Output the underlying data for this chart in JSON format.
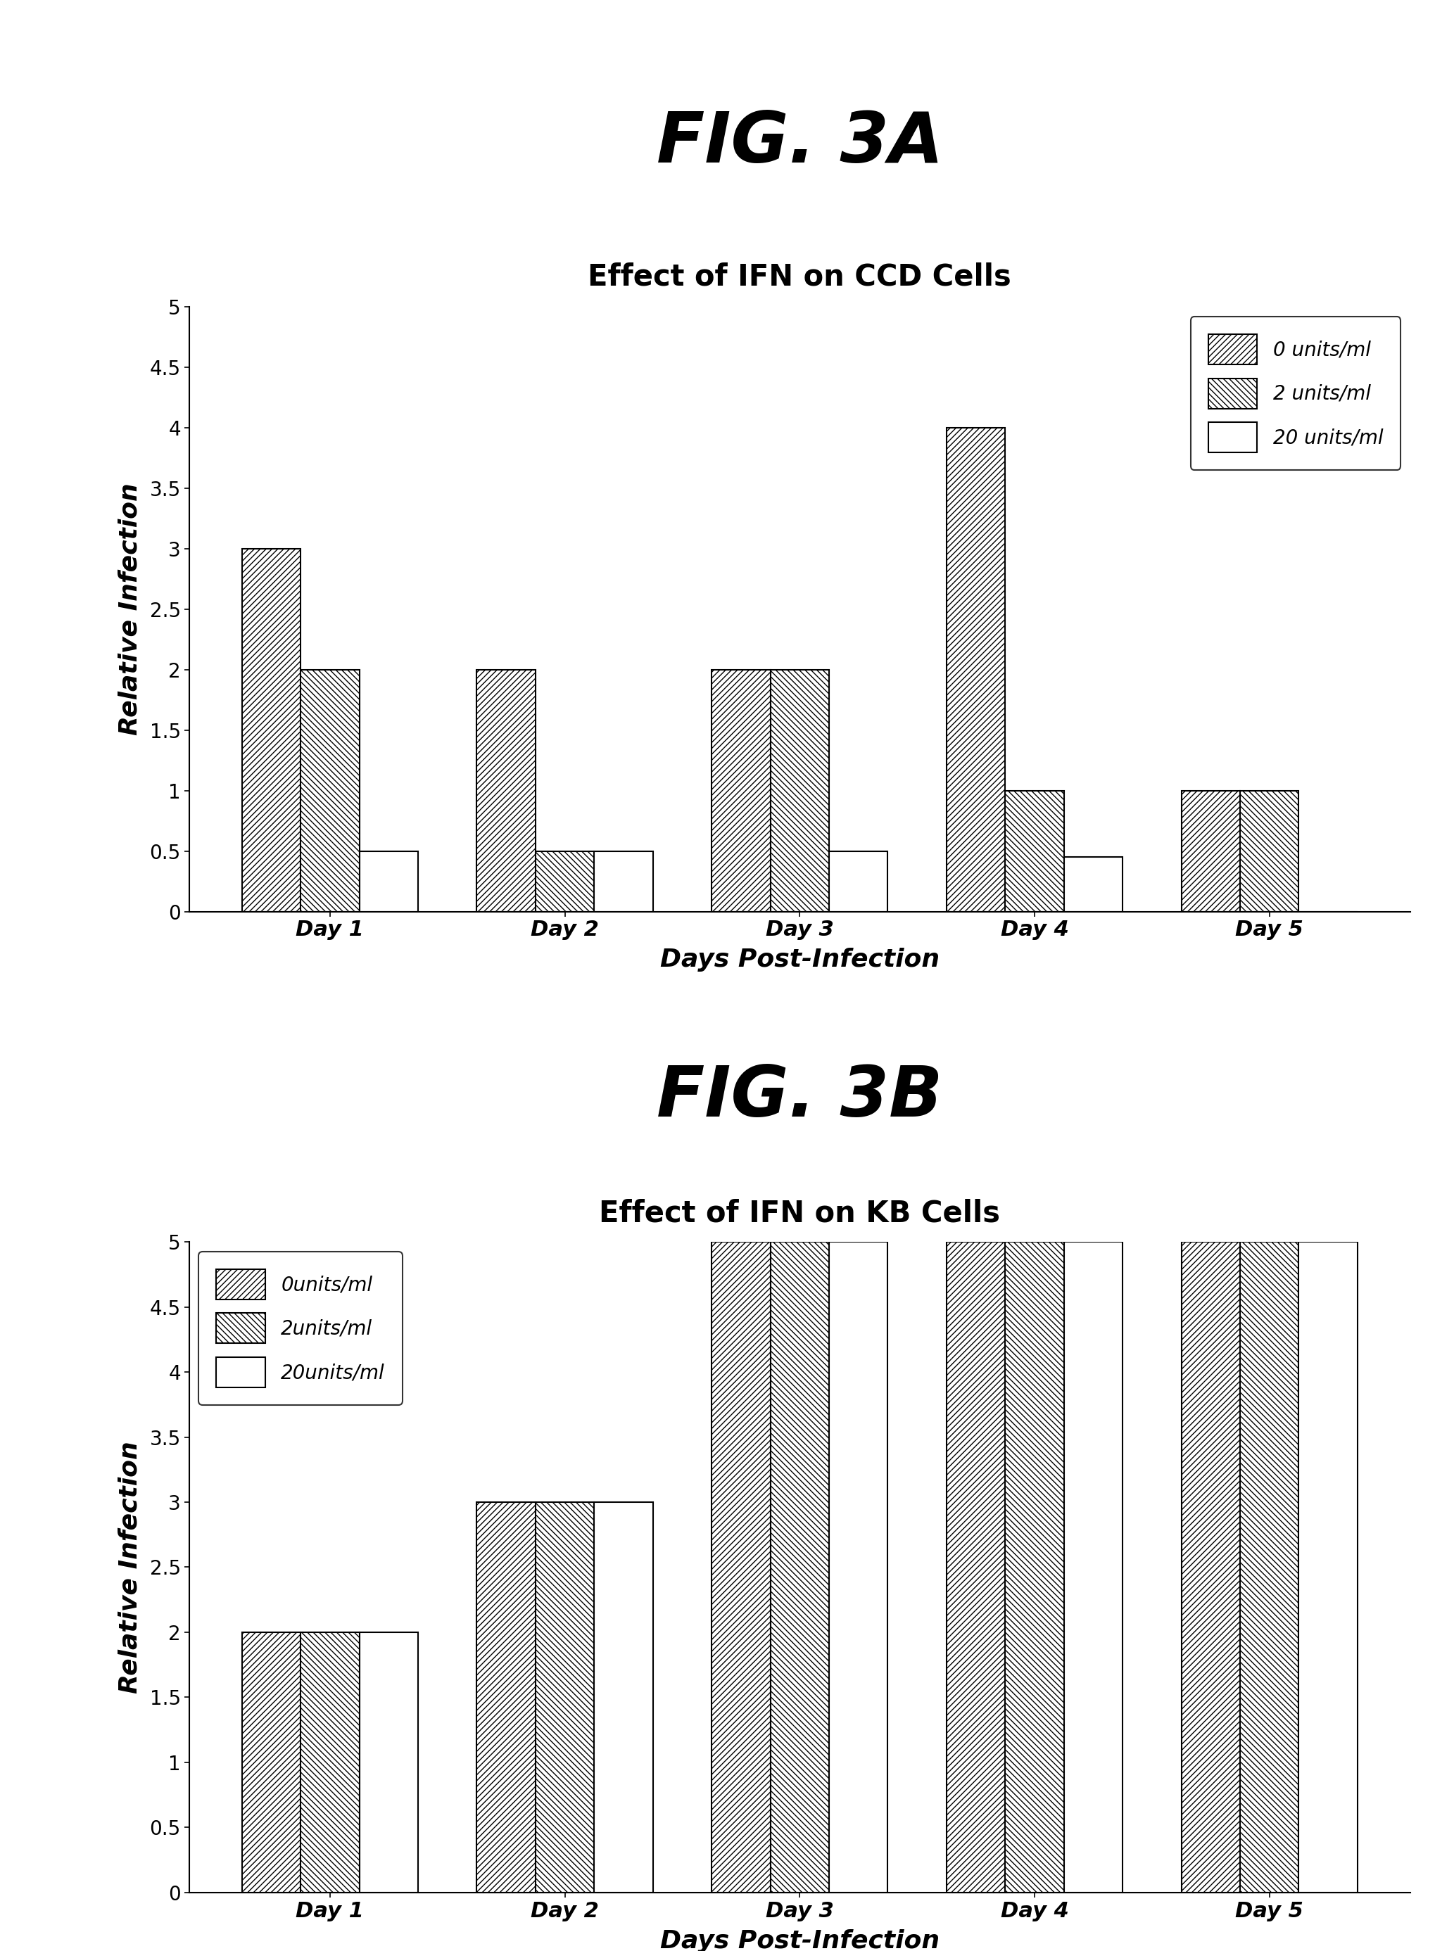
{
  "fig_title_a": "FIG. 3A",
  "fig_title_b": "FIG. 3B",
  "subtitle_a": "Effect of IFN on CCD Cells",
  "subtitle_b": "Effect of IFN on KB Cells",
  "xlabel": "Days Post-Infection",
  "ylabel": "Relative Infection",
  "days": [
    "Day 1",
    "Day 2",
    "Day 3",
    "Day 4",
    "Day 5"
  ],
  "legend_labels_a": [
    "0 units/ml",
    "2 units/ml",
    "20 units/ml"
  ],
  "legend_labels_b": [
    "0units/ml",
    "2units/ml",
    "20units/ml"
  ],
  "data_a": {
    "series0": [
      3.0,
      2.0,
      2.0,
      4.0,
      1.0
    ],
    "series1": [
      2.0,
      0.5,
      2.0,
      1.0,
      1.0
    ],
    "series2": [
      0.5,
      0.5,
      0.5,
      0.45,
      0.0
    ]
  },
  "data_b": {
    "series0": [
      2.0,
      3.0,
      5.0,
      5.0,
      5.0
    ],
    "series1": [
      2.0,
      3.0,
      5.0,
      5.0,
      5.0
    ],
    "series2": [
      2.0,
      3.0,
      5.0,
      5.0,
      5.0
    ]
  },
  "ylim": [
    0,
    5
  ],
  "yticks": [
    0,
    0.5,
    1.0,
    1.5,
    2.0,
    2.5,
    3.0,
    3.5,
    4.0,
    4.5,
    5.0
  ],
  "ytick_labels": [
    "0",
    "0.5",
    "1",
    "1.5",
    "2",
    "2.5",
    "3",
    "3.5",
    "4",
    "4.5",
    "5"
  ],
  "bar_width": 0.25,
  "background_color": "#ffffff"
}
